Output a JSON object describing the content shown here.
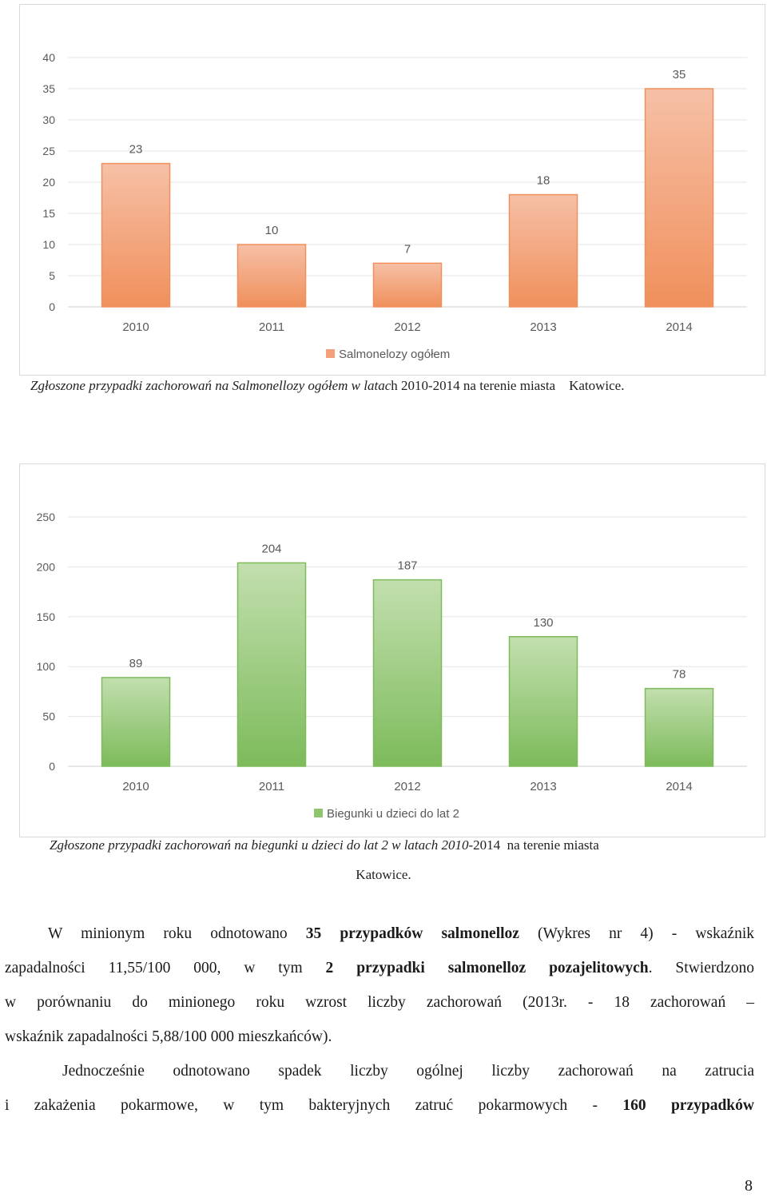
{
  "chart_data": [
    {
      "type": "bar",
      "categories": [
        "2010",
        "2011",
        "2012",
        "2013",
        "2014"
      ],
      "series": [
        {
          "name": "Salmonelozy ogółem",
          "values": [
            23,
            10,
            7,
            18,
            35
          ]
        }
      ],
      "yticks": [
        "0",
        "5",
        "10",
        "15",
        "20",
        "25",
        "30",
        "35",
        "40"
      ],
      "ylim": [
        0,
        40
      ],
      "color_top": "#f6c0a6",
      "color_bottom": "#f0905c",
      "legend_color": "#f4a07a",
      "legend_position": "bottom",
      "grid": true
    },
    {
      "type": "bar",
      "categories": [
        "2010",
        "2011",
        "2012",
        "2013",
        "2014"
      ],
      "series": [
        {
          "name": "Biegunki u dzieci do lat 2",
          "values": [
            89,
            204,
            187,
            130,
            78
          ]
        }
      ],
      "yticks": [
        "0",
        "50",
        "100",
        "150",
        "200",
        "250"
      ],
      "ylim": [
        0,
        250
      ],
      "color_top": "#c2dfae",
      "color_bottom": "#7dbb5b",
      "legend_color": "#8fc56c",
      "legend_position": "bottom",
      "grid": true
    }
  ],
  "caption1": {
    "italic": "Zgłoszone przypadki zachorowań na Salmonellozy ogółem w latac",
    "plain": "h 2010-2014 na terenie miasta    Katowice."
  },
  "caption2": {
    "italic": "Zgłoszone przypadki zachorowań na biegunki u dzieci do lat 2 w latach 2010-",
    "plain": "2014  na terenie miasta",
    "line2": "Katowice."
  },
  "paragraph1": {
    "l1_a": "W minionym roku odnotowano ",
    "l1_b": "35 przypadków salmonelloz",
    "l1_c": " (Wykres nr 4) - wskaźnik",
    "l2_a": "zapadalności 11,55/100 000, w tym ",
    "l2_b": "2 przypadki salmonelloz pozajelitowych",
    "l2_c": ". Stwierdzono",
    "l3": "w porównaniu do  minionego roku wzrost liczby zachorowań (2013r. - 18 zachorowań –",
    "l4": "wskaźnik zapadalności 5,88/100 000 mieszkańców)."
  },
  "paragraph2": {
    "l1": "Jednocześnie odnotowano spadek liczby ogólnej liczby zachorowań na zatrucia",
    "l2_a": "i zakażenia pokarmowe,  w tym bakteryjnych zatruć pokarmowych - ",
    "l2_b": "160 przypadków"
  },
  "page_number": "8"
}
